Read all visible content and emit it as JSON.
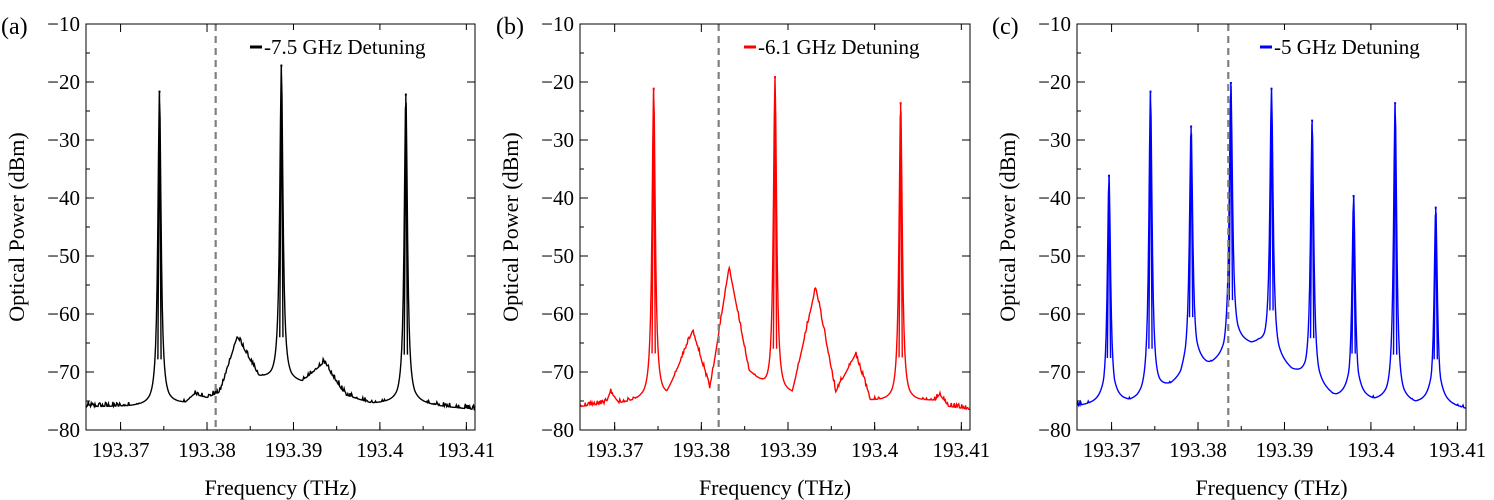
{
  "chart_data": [
    {
      "type": "line",
      "panel_label": "(a)",
      "xlabel": "Frequency (THz)",
      "ylabel": "Optical Power (dBm)",
      "xlim": [
        193.366,
        193.411
      ],
      "ylim": [
        -80,
        -10
      ],
      "xticks": [
        193.37,
        193.38,
        193.39,
        193.4,
        193.41
      ],
      "xtick_labels": [
        "193.37",
        "193.38",
        "193.39",
        "193.4",
        "193.41"
      ],
      "yticks": [
        -80,
        -70,
        -60,
        -50,
        -40,
        -30,
        -20,
        -10
      ],
      "ytick_labels": [
        "−80",
        "−70",
        "−60",
        "−50",
        "−40",
        "−30",
        "−20",
        "−10"
      ],
      "grid": false,
      "legend_position": "top-right",
      "dashed_marker_x": 193.381,
      "series": [
        {
          "name": "-7.5 GHz Detuning",
          "color": "#000000",
          "baseline": [
            [
              193.366,
              -76
            ],
            [
              193.373,
              -76
            ],
            [
              193.3775,
              -75.5
            ],
            [
              193.3785,
              -74
            ],
            [
              193.38,
              -74.5
            ],
            [
              193.3815,
              -73.5
            ],
            [
              193.3835,
              -64
            ],
            [
              193.386,
              -71
            ],
            [
              193.3885,
              -72
            ],
            [
              193.3895,
              -72
            ],
            [
              193.391,
              -72
            ],
            [
              193.3935,
              -68.5
            ],
            [
              193.396,
              -74
            ],
            [
              193.399,
              -75.5
            ],
            [
              193.402,
              -75.5
            ],
            [
              193.403,
              -75
            ],
            [
              193.404,
              -75.5
            ],
            [
              193.407,
              -76
            ],
            [
              193.411,
              -76.5
            ]
          ],
          "peaks": [
            {
              "x": 193.3745,
              "y": -21.5
            },
            {
              "x": 193.3886,
              "y": -17
            },
            {
              "x": 193.403,
              "y": -22
            }
          ]
        }
      ]
    },
    {
      "type": "line",
      "panel_label": "(b)",
      "xlabel": "Frequency (THz)",
      "ylabel": "Optical Power (dBm)",
      "xlim": [
        193.366,
        193.411
      ],
      "ylim": [
        -80,
        -10
      ],
      "xticks": [
        193.37,
        193.38,
        193.39,
        193.4,
        193.41
      ],
      "xtick_labels": [
        "193.37",
        "193.38",
        "193.39",
        "193.4",
        "193.41"
      ],
      "yticks": [
        -80,
        -70,
        -60,
        -50,
        -40,
        -30,
        -20,
        -10
      ],
      "ytick_labels": [
        "−80",
        "−70",
        "−60",
        "−50",
        "−40",
        "−30",
        "−20",
        "−10"
      ],
      "grid": false,
      "legend_position": "top-right",
      "dashed_marker_x": 193.382,
      "series": [
        {
          "name": "-6.1 GHz Detuning",
          "color": "#ff0000",
          "baseline": [
            [
              193.366,
              -76
            ],
            [
              193.369,
              -75.5
            ],
            [
              193.3695,
              -73.5
            ],
            [
              193.3705,
              -75.5
            ],
            [
              193.3735,
              -75
            ],
            [
              193.376,
              -74.5
            ],
            [
              193.379,
              -63
            ],
            [
              193.381,
              -73
            ],
            [
              193.3832,
              -52
            ],
            [
              193.3855,
              -70
            ],
            [
              193.388,
              -74
            ],
            [
              193.3905,
              -74
            ],
            [
              193.3932,
              -55.5
            ],
            [
              193.3955,
              -73.5
            ],
            [
              193.3978,
              -67
            ],
            [
              193.3995,
              -75
            ],
            [
              193.403,
              -75.5
            ],
            [
              193.407,
              -75
            ],
            [
              193.4075,
              -74
            ],
            [
              193.4085,
              -76
            ],
            [
              193.411,
              -76.5
            ]
          ],
          "peaks": [
            {
              "x": 193.3745,
              "y": -21
            },
            {
              "x": 193.3885,
              "y": -19
            },
            {
              "x": 193.403,
              "y": -23.5
            }
          ]
        }
      ]
    },
    {
      "type": "line",
      "panel_label": "(c)",
      "xlabel": "Frequency (THz)",
      "ylabel": "Optical Power (dBm)",
      "xlim": [
        193.366,
        193.411
      ],
      "ylim": [
        -80,
        -10
      ],
      "xticks": [
        193.37,
        193.38,
        193.39,
        193.4,
        193.41
      ],
      "xtick_labels": [
        "193.37",
        "193.38",
        "193.39",
        "193.4",
        "193.41"
      ],
      "yticks": [
        -80,
        -70,
        -60,
        -50,
        -40,
        -30,
        -20,
        -10
      ],
      "ytick_labels": [
        "−80",
        "−70",
        "−60",
        "−50",
        "−40",
        "−30",
        "−20",
        "−10"
      ],
      "grid": false,
      "legend_position": "top-right",
      "dashed_marker_x": 193.3835,
      "series": [
        {
          "name": "-5 GHz Detuning",
          "color": "#0000ff",
          "baseline": [
            [
              193.366,
              -76
            ],
            [
              193.3705,
              -75.5
            ],
            [
              193.373,
              -75
            ],
            [
              193.376,
              -73
            ],
            [
              193.378,
              -71.5
            ],
            [
              193.379,
              -68.5
            ],
            [
              193.381,
              -69
            ],
            [
              193.383,
              -68
            ],
            [
              193.384,
              -65
            ],
            [
              193.387,
              -65.5
            ],
            [
              193.389,
              -68
            ],
            [
              193.391,
              -70
            ],
            [
              193.393,
              -72
            ],
            [
              193.396,
              -74.5
            ],
            [
              193.399,
              -75
            ],
            [
              193.403,
              -75
            ],
            [
              193.405,
              -75.5
            ],
            [
              193.409,
              -76
            ],
            [
              193.411,
              -76.5
            ]
          ],
          "peaks": [
            {
              "x": 193.3697,
              "y": -36
            },
            {
              "x": 193.3745,
              "y": -21.5
            },
            {
              "x": 193.3792,
              "y": -27.5
            },
            {
              "x": 193.3838,
              "y": -20
            },
            {
              "x": 193.3885,
              "y": -21
            },
            {
              "x": 193.3932,
              "y": -26.5
            },
            {
              "x": 193.398,
              "y": -39.5
            },
            {
              "x": 193.4028,
              "y": -23.5
            },
            {
              "x": 193.4075,
              "y": -41.5
            }
          ]
        }
      ]
    }
  ]
}
